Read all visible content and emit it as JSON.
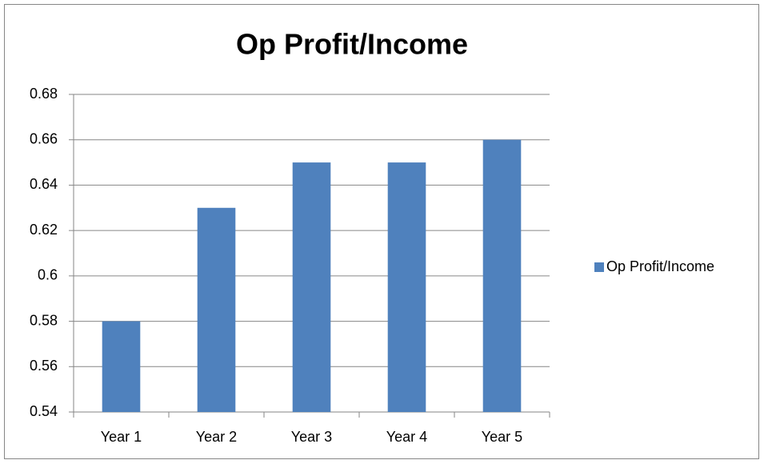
{
  "chart_data": {
    "type": "bar",
    "title": "Op Profit/Income",
    "categories": [
      "Year 1",
      "Year 2",
      "Year 3",
      "Year 4",
      "Year 5"
    ],
    "series": [
      {
        "name": "Op Profit/Income",
        "color": "#4f81bd",
        "values": [
          0.58,
          0.63,
          0.65,
          0.65,
          0.66
        ]
      }
    ],
    "ylim": [
      0.54,
      0.68
    ],
    "yticks": [
      0.54,
      0.56,
      0.58,
      0.6,
      0.62,
      0.64,
      0.66,
      0.68
    ],
    "grid": true,
    "legend": "right"
  }
}
